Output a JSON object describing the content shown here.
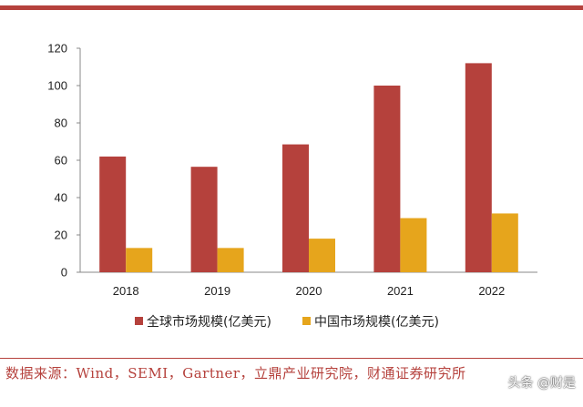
{
  "colors": {
    "global": "#b5413c",
    "china": "#e6a51c",
    "accent": "#b5413c"
  },
  "chart_data": {
    "type": "bar",
    "categories": [
      "2018",
      "2019",
      "2020",
      "2021",
      "2022"
    ],
    "series": [
      {
        "name": "全球市场规模(亿美元)",
        "values": [
          62,
          56.5,
          68.5,
          100,
          112
        ]
      },
      {
        "name": "中国市场规模(亿美元)",
        "values": [
          13,
          13,
          18,
          29,
          31.5
        ]
      }
    ],
    "y_ticks": [
      "0",
      "20",
      "40",
      "60",
      "80",
      "100",
      "120"
    ],
    "ylim": [
      0,
      120
    ],
    "grid": false,
    "legend_position": "bottom"
  },
  "source_text": "数据来源：Wind，SEMI，Gartner，立鼎产业研究院，财通证券研究所",
  "watermark": "头条 @财是"
}
